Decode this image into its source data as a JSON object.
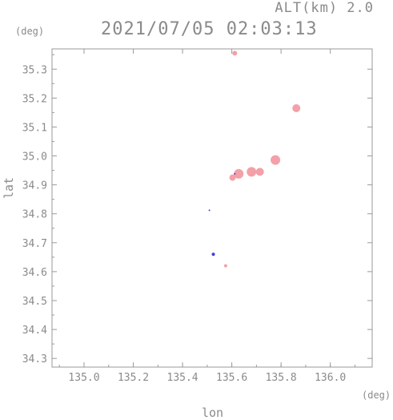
{
  "header": {
    "alt_label": "ALT(km) 2.0",
    "time_label": "2021/07/05 02:03:13"
  },
  "chart_data": {
    "type": "scatter",
    "title": "2021/07/05 02:03:13",
    "subtitle": "ALT(km) 2.0",
    "xlabel": "lon",
    "ylabel": "lat",
    "x_unit": "(deg)",
    "y_unit": "(deg)",
    "xlim": [
      134.87,
      136.17
    ],
    "ylim": [
      34.27,
      35.37
    ],
    "x_ticks": [
      135.0,
      135.2,
      135.4,
      135.6,
      135.8,
      136.0
    ],
    "x_tick_labels": [
      "135.0",
      "135.2",
      "135.4",
      "135.6",
      "135.8",
      "136.0"
    ],
    "y_ticks": [
      34.3,
      34.4,
      34.5,
      34.6,
      34.7,
      34.8,
      34.9,
      35.0,
      35.1,
      35.2,
      35.3
    ],
    "y_tick_labels": [
      "34.3",
      "34.4",
      "34.5",
      "34.6",
      "34.7",
      "34.8",
      "34.9",
      "35.0",
      "35.1",
      "35.2",
      "35.3"
    ],
    "grid": false,
    "series": [
      {
        "color": "#f4a0a8",
        "points": [
          {
            "lon": 135.612,
            "lat": 35.355,
            "size": 3
          },
          {
            "lon": 135.862,
            "lat": 35.165,
            "size": 5
          },
          {
            "lon": 135.777,
            "lat": 34.986,
            "size": 6
          },
          {
            "lon": 135.714,
            "lat": 34.945,
            "size": 5
          },
          {
            "lon": 135.68,
            "lat": 34.945,
            "size": 6
          },
          {
            "lon": 135.628,
            "lat": 34.938,
            "size": 6
          },
          {
            "lon": 135.603,
            "lat": 34.925,
            "size": 4
          },
          {
            "lon": 135.575,
            "lat": 34.62,
            "size": 2
          }
        ]
      },
      {
        "color": "#4040cc",
        "points": [
          {
            "lon": 135.509,
            "lat": 34.812,
            "size": 1
          },
          {
            "lon": 135.525,
            "lat": 34.66,
            "size": 2
          },
          {
            "lon": 135.612,
            "lat": 34.938,
            "size": 1
          }
        ]
      }
    ]
  }
}
